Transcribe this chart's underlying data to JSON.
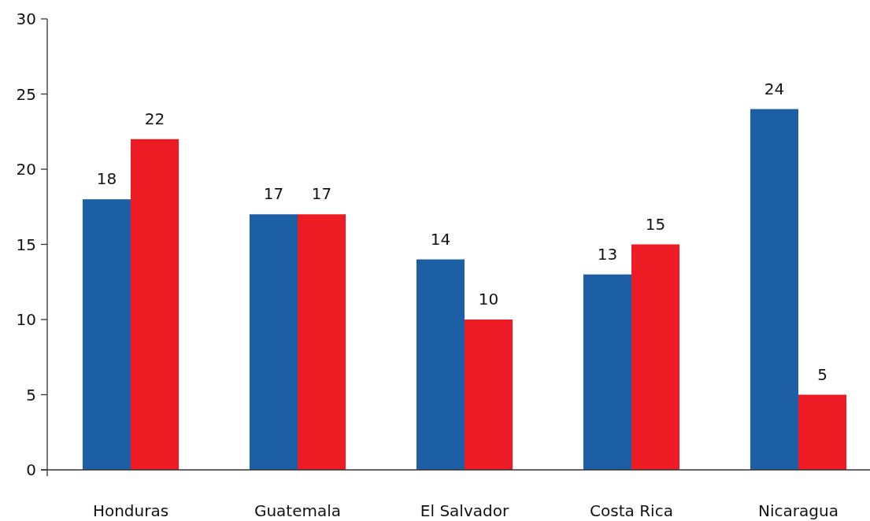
{
  "chart_data": {
    "type": "bar",
    "categories": [
      "Honduras",
      "Guatemala",
      "El Salvador",
      "Costa Rica",
      "Nicaragua"
    ],
    "series": [
      {
        "color": "#1d5fa5",
        "values": [
          18,
          17,
          14,
          13,
          24
        ]
      },
      {
        "color": "#ed1c24",
        "values": [
          22,
          17,
          10,
          15,
          5
        ]
      }
    ],
    "ylim": [
      0,
      30
    ],
    "yticks": [
      0,
      5,
      10,
      15,
      20,
      25,
      30
    ],
    "data_labels": true
  }
}
